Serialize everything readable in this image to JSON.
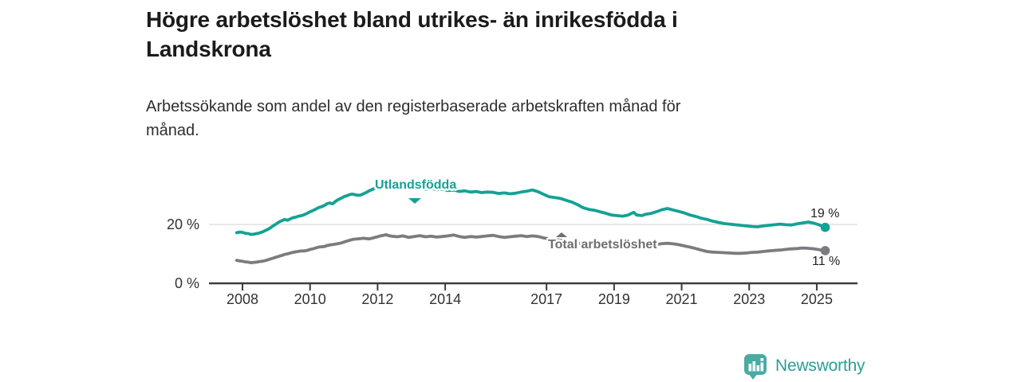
{
  "header": {
    "title_line1": "Högre arbetslöshet bland utrikes- än inrikesfödda i",
    "title_line2": "Landskrona",
    "subtitle_line1": "Arbetssökande som andel av den registerbaserade arbetskraften månad för",
    "subtitle_line2": "månad."
  },
  "chart_data": {
    "type": "line",
    "title": "Högre arbetslöshet bland utrikes- än inrikesfödda i Landskrona",
    "subtitle": "Arbetssökande som andel av den registerbaserade arbetskraften månad för månad.",
    "unit": "%",
    "x_range": [
      2007.83,
      2025.25
    ],
    "ylim": [
      0,
      36
    ],
    "grid": "horizontal line at 20 % only",
    "legend_position": "labels inline on lines",
    "y_ticks": [
      {
        "value": 0,
        "label": "0 %"
      },
      {
        "value": 20,
        "label": "20 %"
      }
    ],
    "x_ticks": [
      {
        "year": 2008,
        "label": "2008"
      },
      {
        "year": 2010,
        "label": "2010"
      },
      {
        "year": 2012,
        "label": "2012"
      },
      {
        "year": 2014,
        "label": "2014"
      },
      {
        "year": 2017,
        "label": "2017"
      },
      {
        "year": 2019,
        "label": "2019"
      },
      {
        "year": 2021,
        "label": "2021"
      },
      {
        "year": 2023,
        "label": "2023"
      },
      {
        "year": 2025,
        "label": "2025"
      }
    ],
    "series": [
      {
        "name": "Utlandsfödda",
        "color": "#13a295",
        "end_value": 19,
        "end_label": "19 %",
        "points": [
          [
            2007.83,
            17.2
          ],
          [
            2007.92,
            17.4
          ],
          [
            2008.0,
            17.3
          ],
          [
            2008.08,
            17.0
          ],
          [
            2008.17,
            16.9
          ],
          [
            2008.25,
            16.6
          ],
          [
            2008.33,
            16.7
          ],
          [
            2008.42,
            16.9
          ],
          [
            2008.5,
            17.1
          ],
          [
            2008.58,
            17.4
          ],
          [
            2008.67,
            17.9
          ],
          [
            2008.75,
            18.3
          ],
          [
            2008.83,
            18.9
          ],
          [
            2008.92,
            19.6
          ],
          [
            2009.0,
            20.2
          ],
          [
            2009.08,
            20.8
          ],
          [
            2009.17,
            21.3
          ],
          [
            2009.25,
            21.7
          ],
          [
            2009.33,
            21.4
          ],
          [
            2009.42,
            21.9
          ],
          [
            2009.5,
            22.3
          ],
          [
            2009.58,
            22.5
          ],
          [
            2009.67,
            22.8
          ],
          [
            2009.75,
            23.0
          ],
          [
            2009.83,
            23.3
          ],
          [
            2009.92,
            23.8
          ],
          [
            2010.0,
            24.3
          ],
          [
            2010.08,
            24.7
          ],
          [
            2010.17,
            25.2
          ],
          [
            2010.25,
            25.7
          ],
          [
            2010.33,
            26.0
          ],
          [
            2010.42,
            26.4
          ],
          [
            2010.5,
            27.0
          ],
          [
            2010.58,
            27.3
          ],
          [
            2010.67,
            27.0
          ],
          [
            2010.75,
            27.8
          ],
          [
            2010.83,
            28.4
          ],
          [
            2010.92,
            28.9
          ],
          [
            2011.0,
            29.4
          ],
          [
            2011.08,
            29.7
          ],
          [
            2011.17,
            30.1
          ],
          [
            2011.25,
            30.3
          ],
          [
            2011.33,
            30.1
          ],
          [
            2011.42,
            29.9
          ],
          [
            2011.5,
            30.0
          ],
          [
            2011.58,
            30.4
          ],
          [
            2011.67,
            30.9
          ],
          [
            2011.75,
            31.4
          ],
          [
            2011.83,
            31.8
          ],
          [
            2011.92,
            32.3
          ],
          [
            2012.0,
            32.9
          ],
          [
            2012.08,
            33.5
          ],
          [
            2012.17,
            34.1
          ],
          [
            2012.25,
            34.3
          ],
          [
            2012.33,
            33.8
          ],
          [
            2012.42,
            33.4
          ],
          [
            2012.58,
            33.0
          ],
          [
            2012.75,
            33.2
          ],
          [
            2012.92,
            32.6
          ],
          [
            2013.08,
            32.9
          ],
          [
            2013.25,
            32.4
          ],
          [
            2013.42,
            32.0
          ],
          [
            2013.58,
            32.3
          ],
          [
            2013.75,
            31.8
          ],
          [
            2013.92,
            32.0
          ],
          [
            2014.08,
            31.5
          ],
          [
            2014.25,
            31.7
          ],
          [
            2014.42,
            31.2
          ],
          [
            2014.58,
            31.4
          ],
          [
            2014.75,
            31.0
          ],
          [
            2014.92,
            31.2
          ],
          [
            2015.08,
            30.8
          ],
          [
            2015.25,
            31.0
          ],
          [
            2015.42,
            30.9
          ],
          [
            2015.58,
            30.5
          ],
          [
            2015.75,
            30.7
          ],
          [
            2015.92,
            30.4
          ],
          [
            2016.08,
            30.6
          ],
          [
            2016.25,
            31.0
          ],
          [
            2016.42,
            31.3
          ],
          [
            2016.58,
            31.7
          ],
          [
            2016.75,
            31.1
          ],
          [
            2016.92,
            30.2
          ],
          [
            2017.08,
            29.4
          ],
          [
            2017.25,
            29.1
          ],
          [
            2017.42,
            28.8
          ],
          [
            2017.58,
            28.2
          ],
          [
            2017.75,
            27.6
          ],
          [
            2017.92,
            26.7
          ],
          [
            2018.08,
            25.7
          ],
          [
            2018.25,
            25.1
          ],
          [
            2018.42,
            24.8
          ],
          [
            2018.58,
            24.3
          ],
          [
            2018.75,
            23.8
          ],
          [
            2018.92,
            23.2
          ],
          [
            2019.08,
            23.0
          ],
          [
            2019.25,
            22.8
          ],
          [
            2019.42,
            23.2
          ],
          [
            2019.58,
            24.1
          ],
          [
            2019.67,
            23.2
          ],
          [
            2019.83,
            23.0
          ],
          [
            2019.92,
            23.4
          ],
          [
            2020.08,
            23.7
          ],
          [
            2020.25,
            24.3
          ],
          [
            2020.42,
            25.0
          ],
          [
            2020.58,
            25.4
          ],
          [
            2020.75,
            24.9
          ],
          [
            2020.92,
            24.4
          ],
          [
            2021.08,
            23.9
          ],
          [
            2021.25,
            23.2
          ],
          [
            2021.42,
            22.7
          ],
          [
            2021.58,
            22.1
          ],
          [
            2021.75,
            21.7
          ],
          [
            2021.92,
            21.1
          ],
          [
            2022.08,
            20.7
          ],
          [
            2022.25,
            20.3
          ],
          [
            2022.42,
            20.1
          ],
          [
            2022.58,
            19.9
          ],
          [
            2022.75,
            19.7
          ],
          [
            2022.92,
            19.5
          ],
          [
            2023.08,
            19.3
          ],
          [
            2023.25,
            19.2
          ],
          [
            2023.42,
            19.5
          ],
          [
            2023.58,
            19.7
          ],
          [
            2023.75,
            19.9
          ],
          [
            2023.92,
            20.1
          ],
          [
            2024.08,
            19.9
          ],
          [
            2024.25,
            19.8
          ],
          [
            2024.42,
            20.2
          ],
          [
            2024.58,
            20.5
          ],
          [
            2024.75,
            20.8
          ],
          [
            2024.92,
            20.4
          ],
          [
            2025.08,
            19.8
          ],
          [
            2025.17,
            19.4
          ],
          [
            2025.25,
            19.0
          ]
        ]
      },
      {
        "name": "Total arbetslöshet",
        "color": "#7b7b80",
        "end_value": 11,
        "end_label": "11 %",
        "points": [
          [
            2007.83,
            7.8
          ],
          [
            2007.92,
            7.6
          ],
          [
            2008.0,
            7.5
          ],
          [
            2008.08,
            7.3
          ],
          [
            2008.17,
            7.2
          ],
          [
            2008.25,
            7.0
          ],
          [
            2008.33,
            7.1
          ],
          [
            2008.42,
            7.2
          ],
          [
            2008.5,
            7.4
          ],
          [
            2008.58,
            7.5
          ],
          [
            2008.67,
            7.7
          ],
          [
            2008.75,
            8.0
          ],
          [
            2008.83,
            8.3
          ],
          [
            2008.92,
            8.6
          ],
          [
            2009.0,
            8.9
          ],
          [
            2009.08,
            9.2
          ],
          [
            2009.17,
            9.5
          ],
          [
            2009.25,
            9.8
          ],
          [
            2009.33,
            10.0
          ],
          [
            2009.42,
            10.3
          ],
          [
            2009.5,
            10.5
          ],
          [
            2009.58,
            10.7
          ],
          [
            2009.67,
            10.9
          ],
          [
            2009.75,
            11.0
          ],
          [
            2009.83,
            11.0
          ],
          [
            2009.92,
            11.2
          ],
          [
            2010.0,
            11.5
          ],
          [
            2010.08,
            11.7
          ],
          [
            2010.17,
            12.0
          ],
          [
            2010.25,
            12.3
          ],
          [
            2010.33,
            12.4
          ],
          [
            2010.42,
            12.5
          ],
          [
            2010.5,
            12.8
          ],
          [
            2010.58,
            13.0
          ],
          [
            2010.67,
            13.2
          ],
          [
            2010.75,
            13.3
          ],
          [
            2010.83,
            13.5
          ],
          [
            2010.92,
            13.7
          ],
          [
            2011.0,
            14.0
          ],
          [
            2011.08,
            14.3
          ],
          [
            2011.17,
            14.6
          ],
          [
            2011.25,
            14.9
          ],
          [
            2011.33,
            15.0
          ],
          [
            2011.42,
            15.1
          ],
          [
            2011.5,
            15.2
          ],
          [
            2011.58,
            15.3
          ],
          [
            2011.67,
            15.2
          ],
          [
            2011.75,
            15.1
          ],
          [
            2011.83,
            15.3
          ],
          [
            2011.92,
            15.6
          ],
          [
            2012.0,
            15.8
          ],
          [
            2012.08,
            16.1
          ],
          [
            2012.17,
            16.3
          ],
          [
            2012.25,
            16.5
          ],
          [
            2012.33,
            16.2
          ],
          [
            2012.42,
            16.0
          ],
          [
            2012.58,
            15.8
          ],
          [
            2012.75,
            16.1
          ],
          [
            2012.92,
            15.6
          ],
          [
            2013.08,
            15.9
          ],
          [
            2013.25,
            16.2
          ],
          [
            2013.42,
            15.8
          ],
          [
            2013.58,
            16.0
          ],
          [
            2013.75,
            15.7
          ],
          [
            2013.92,
            15.9
          ],
          [
            2014.08,
            16.1
          ],
          [
            2014.25,
            16.4
          ],
          [
            2014.42,
            15.9
          ],
          [
            2014.58,
            15.6
          ],
          [
            2014.75,
            15.9
          ],
          [
            2014.92,
            15.7
          ],
          [
            2015.08,
            15.9
          ],
          [
            2015.25,
            16.1
          ],
          [
            2015.42,
            16.3
          ],
          [
            2015.58,
            15.9
          ],
          [
            2015.75,
            15.6
          ],
          [
            2015.92,
            15.8
          ],
          [
            2016.08,
            16.0
          ],
          [
            2016.25,
            16.2
          ],
          [
            2016.42,
            15.9
          ],
          [
            2016.58,
            16.1
          ],
          [
            2016.75,
            15.9
          ],
          [
            2016.92,
            15.4
          ],
          [
            2017.08,
            15.1
          ],
          [
            2017.25,
            14.9
          ],
          [
            2017.42,
            14.6
          ],
          [
            2017.58,
            14.3
          ],
          [
            2017.75,
            14.0
          ],
          [
            2017.92,
            13.7
          ],
          [
            2018.08,
            13.4
          ],
          [
            2018.25,
            13.1
          ],
          [
            2018.42,
            12.9
          ],
          [
            2018.58,
            12.7
          ],
          [
            2018.75,
            12.5
          ],
          [
            2018.92,
            12.4
          ],
          [
            2019.08,
            12.3
          ],
          [
            2019.25,
            12.3
          ],
          [
            2019.42,
            12.4
          ],
          [
            2019.58,
            12.5
          ],
          [
            2019.75,
            12.4
          ],
          [
            2019.92,
            12.6
          ],
          [
            2020.08,
            12.9
          ],
          [
            2020.25,
            13.2
          ],
          [
            2020.42,
            13.5
          ],
          [
            2020.58,
            13.6
          ],
          [
            2020.75,
            13.4
          ],
          [
            2020.92,
            13.1
          ],
          [
            2021.08,
            12.7
          ],
          [
            2021.25,
            12.3
          ],
          [
            2021.42,
            11.8
          ],
          [
            2021.58,
            11.3
          ],
          [
            2021.75,
            10.8
          ],
          [
            2021.92,
            10.6
          ],
          [
            2022.08,
            10.5
          ],
          [
            2022.25,
            10.4
          ],
          [
            2022.42,
            10.3
          ],
          [
            2022.58,
            10.2
          ],
          [
            2022.75,
            10.2
          ],
          [
            2022.92,
            10.3
          ],
          [
            2023.08,
            10.5
          ],
          [
            2023.25,
            10.6
          ],
          [
            2023.42,
            10.8
          ],
          [
            2023.58,
            11.0
          ],
          [
            2023.75,
            11.2
          ],
          [
            2023.92,
            11.3
          ],
          [
            2024.08,
            11.5
          ],
          [
            2024.25,
            11.7
          ],
          [
            2024.42,
            11.8
          ],
          [
            2024.58,
            12.0
          ],
          [
            2024.75,
            11.9
          ],
          [
            2024.92,
            11.7
          ],
          [
            2025.08,
            11.4
          ],
          [
            2025.17,
            11.2
          ],
          [
            2025.25,
            11.1
          ]
        ]
      }
    ],
    "colors": {
      "grid": "#dadada",
      "axis": "#3c3c3c",
      "tick_text": "#333333"
    }
  },
  "footer": {
    "brand": "Newsworthy",
    "brand_color": "#2c9d96",
    "brand_icon_color": "#4aaba3"
  }
}
